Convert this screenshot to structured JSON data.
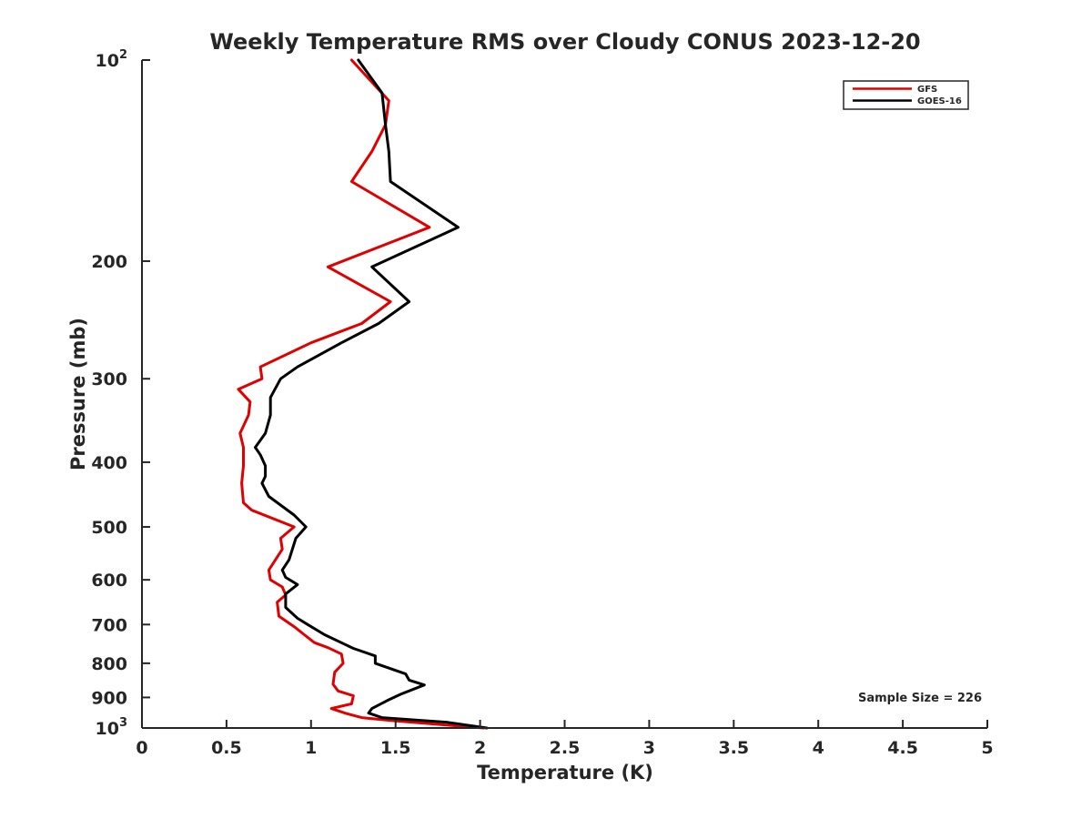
{
  "chart_data": {
    "type": "line",
    "title": "Weekly Temperature RMS over Cloudy CONUS 2023-12-20",
    "xlabel": "Temperature (K)",
    "ylabel": "Pressure (mb)",
    "xlim": [
      0,
      5
    ],
    "ylim": [
      100,
      1000
    ],
    "y_scale": "log",
    "y_reversed": true,
    "grid": false,
    "legend_position": "top-right",
    "x_ticks": [
      0,
      0.5,
      1,
      1.5,
      2,
      2.5,
      3,
      3.5,
      4,
      4.5,
      5
    ],
    "x_tick_labels": [
      "0",
      "0.5",
      "1",
      "1.5",
      "2",
      "2.5",
      "3",
      "3.5",
      "4",
      "4.5",
      "5"
    ],
    "y_ticks": [
      100,
      200,
      300,
      400,
      500,
      600,
      700,
      800,
      900,
      1000
    ],
    "y_tick_labels": [
      {
        "base": "10",
        "sup": "2"
      },
      {
        "base": "200",
        "sup": ""
      },
      {
        "base": "300",
        "sup": ""
      },
      {
        "base": "400",
        "sup": ""
      },
      {
        "base": "500",
        "sup": ""
      },
      {
        "base": "600",
        "sup": ""
      },
      {
        "base": "700",
        "sup": ""
      },
      {
        "base": "800",
        "sup": ""
      },
      {
        "base": "900",
        "sup": ""
      },
      {
        "base": "10",
        "sup": "3"
      }
    ],
    "annotation": "Sample Size = 226",
    "series": [
      {
        "name": "GFS",
        "color": "#e00000",
        "points": [
          [
            1.24,
            100
          ],
          [
            1.46,
            115
          ],
          [
            1.44,
            125
          ],
          [
            1.36,
            137
          ],
          [
            1.24,
            152
          ],
          [
            1.7,
            178
          ],
          [
            1.1,
            204
          ],
          [
            1.47,
            230
          ],
          [
            1.3,
            248
          ],
          [
            1.0,
            265
          ],
          [
            0.7,
            288
          ],
          [
            0.71,
            300
          ],
          [
            0.57,
            311
          ],
          [
            0.64,
            325
          ],
          [
            0.63,
            340
          ],
          [
            0.58,
            362
          ],
          [
            0.6,
            380
          ],
          [
            0.6,
            405
          ],
          [
            0.59,
            430
          ],
          [
            0.6,
            460
          ],
          [
            0.65,
            472
          ],
          [
            0.9,
            500
          ],
          [
            0.82,
            520
          ],
          [
            0.83,
            540
          ],
          [
            0.75,
            580
          ],
          [
            0.76,
            600
          ],
          [
            0.83,
            615
          ],
          [
            0.85,
            632
          ],
          [
            0.8,
            648
          ],
          [
            0.81,
            680
          ],
          [
            0.9,
            705
          ],
          [
            0.96,
            725
          ],
          [
            1.02,
            745
          ],
          [
            1.1,
            758
          ],
          [
            1.18,
            775
          ],
          [
            1.19,
            800
          ],
          [
            1.14,
            825
          ],
          [
            1.13,
            860
          ],
          [
            1.16,
            880
          ],
          [
            1.25,
            895
          ],
          [
            1.24,
            920
          ],
          [
            1.12,
            935
          ],
          [
            1.2,
            950
          ],
          [
            1.3,
            965
          ],
          [
            1.48,
            975
          ],
          [
            2.02,
            1000
          ]
        ]
      },
      {
        "name": "GOES-16",
        "color": "#000000",
        "points": [
          [
            1.28,
            100
          ],
          [
            1.42,
            112
          ],
          [
            1.44,
            125
          ],
          [
            1.46,
            137
          ],
          [
            1.47,
            152
          ],
          [
            1.87,
            178
          ],
          [
            1.36,
            204
          ],
          [
            1.58,
            230
          ],
          [
            1.4,
            248
          ],
          [
            1.18,
            265
          ],
          [
            0.92,
            288
          ],
          [
            0.82,
            300
          ],
          [
            0.76,
            320
          ],
          [
            0.76,
            340
          ],
          [
            0.73,
            362
          ],
          [
            0.67,
            380
          ],
          [
            0.7,
            390
          ],
          [
            0.73,
            405
          ],
          [
            0.73,
            420
          ],
          [
            0.71,
            430
          ],
          [
            0.75,
            450
          ],
          [
            0.9,
            480
          ],
          [
            0.97,
            500
          ],
          [
            0.91,
            520
          ],
          [
            0.87,
            560
          ],
          [
            0.83,
            580
          ],
          [
            0.85,
            595
          ],
          [
            0.92,
            610
          ],
          [
            0.85,
            630
          ],
          [
            0.85,
            660
          ],
          [
            0.92,
            685
          ],
          [
            0.98,
            700
          ],
          [
            1.08,
            725
          ],
          [
            1.25,
            760
          ],
          [
            1.38,
            780
          ],
          [
            1.38,
            800
          ],
          [
            1.56,
            830
          ],
          [
            1.58,
            848
          ],
          [
            1.67,
            862
          ],
          [
            1.53,
            890
          ],
          [
            1.45,
            910
          ],
          [
            1.36,
            935
          ],
          [
            1.34,
            950
          ],
          [
            1.42,
            965
          ],
          [
            1.8,
            980
          ],
          [
            2.04,
            1000
          ]
        ]
      }
    ]
  }
}
